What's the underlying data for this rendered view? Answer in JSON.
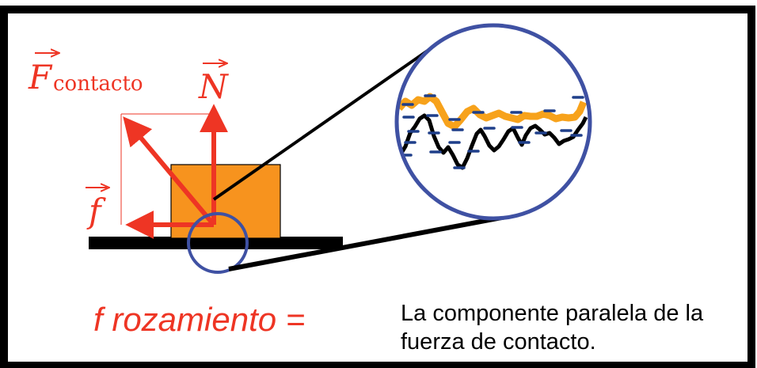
{
  "labels": {
    "contact_force_symbol": "F",
    "contact_force_subscript": "contacto",
    "normal_force_symbol": "N",
    "friction_force_symbol": "f"
  },
  "caption": {
    "formula": "f rozamiento =",
    "description_line1": "La componente paralela de la",
    "description_line2": "fuerza de contacto."
  },
  "colors": {
    "frame": "#000000",
    "force_arrow": "#ee3524",
    "block": "#f7931e",
    "zoom_circle": "#3f51a3",
    "upper_surface": "#f7a21b",
    "lower_surface": "#000000",
    "charge_marks": "#1f3f8a"
  }
}
